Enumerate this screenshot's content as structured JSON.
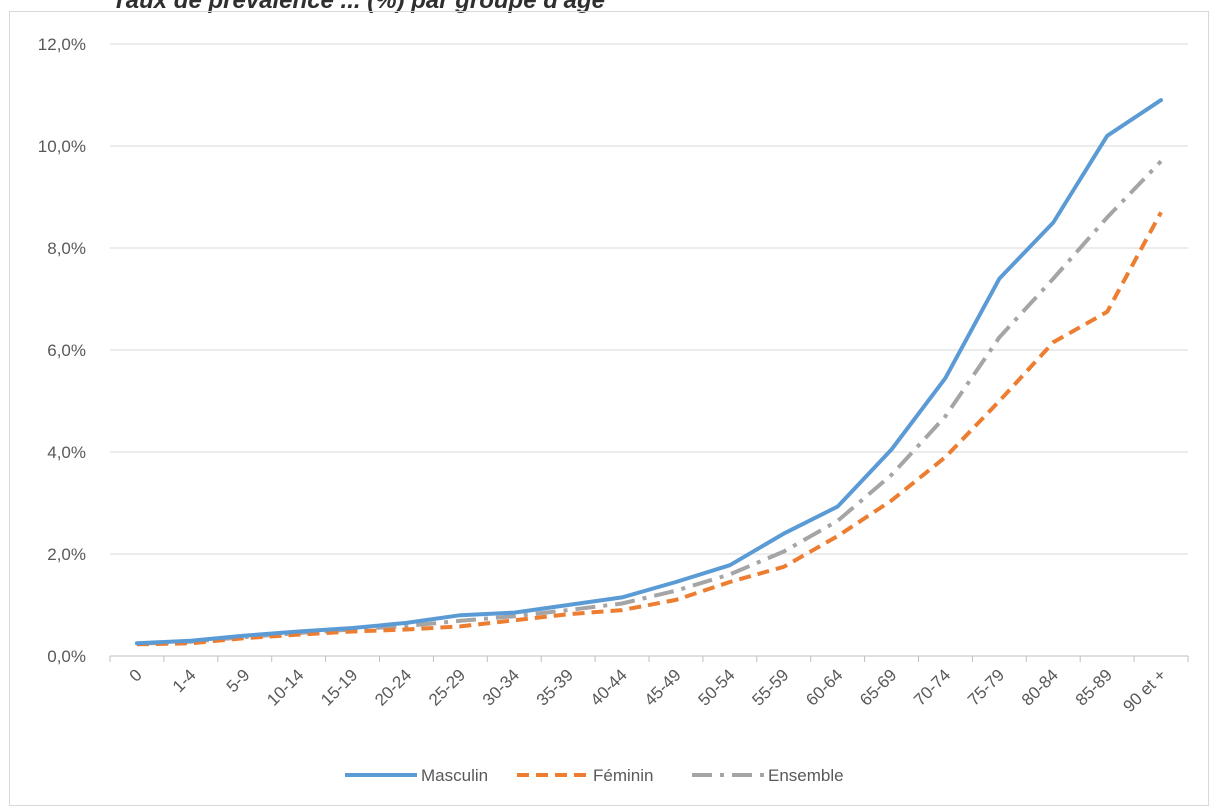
{
  "chart_data": {
    "type": "line",
    "title": "Taux de prévalence ... (%) par groupe d'âge",
    "categories": [
      "0",
      "1-4",
      "5-9",
      "10-14",
      "15-19",
      "20-24",
      "25-29",
      "30-34",
      "35-39",
      "40-44",
      "45-49",
      "50-54",
      "55-59",
      "60-64",
      "65-69",
      "70-74",
      "75-79",
      "80-84",
      "85-89",
      "90 et +"
    ],
    "series": [
      {
        "name": "Masculin",
        "color": "#5b9bd5",
        "style": "solid",
        "values": [
          0.25,
          0.3,
          0.4,
          0.48,
          0.55,
          0.65,
          0.8,
          0.85,
          1.0,
          1.15,
          1.45,
          1.78,
          2.4,
          2.93,
          4.05,
          5.45,
          7.4,
          8.5,
          10.2,
          10.9
        ]
      },
      {
        "name": "Féminin",
        "color": "#ed7d31",
        "style": "dashed",
        "values": [
          0.23,
          0.25,
          0.35,
          0.42,
          0.48,
          0.52,
          0.58,
          0.7,
          0.82,
          0.9,
          1.1,
          1.45,
          1.75,
          2.35,
          3.05,
          3.9,
          5.0,
          6.15,
          6.75,
          8.7
        ]
      },
      {
        "name": "Ensemble",
        "color": "#a5a5a5",
        "style": "dashdot",
        "values": [
          0.24,
          0.28,
          0.37,
          0.45,
          0.52,
          0.59,
          0.69,
          0.78,
          0.9,
          1.03,
          1.28,
          1.6,
          2.05,
          2.65,
          3.55,
          4.7,
          6.25,
          7.4,
          8.6,
          9.7
        ]
      }
    ],
    "y_ticks": [
      "0,0%",
      "2,0%",
      "4,0%",
      "6,0%",
      "8,0%",
      "10,0%",
      "12,0%"
    ],
    "ylim": [
      0,
      12
    ],
    "grid": true,
    "legend_position": "bottom"
  }
}
